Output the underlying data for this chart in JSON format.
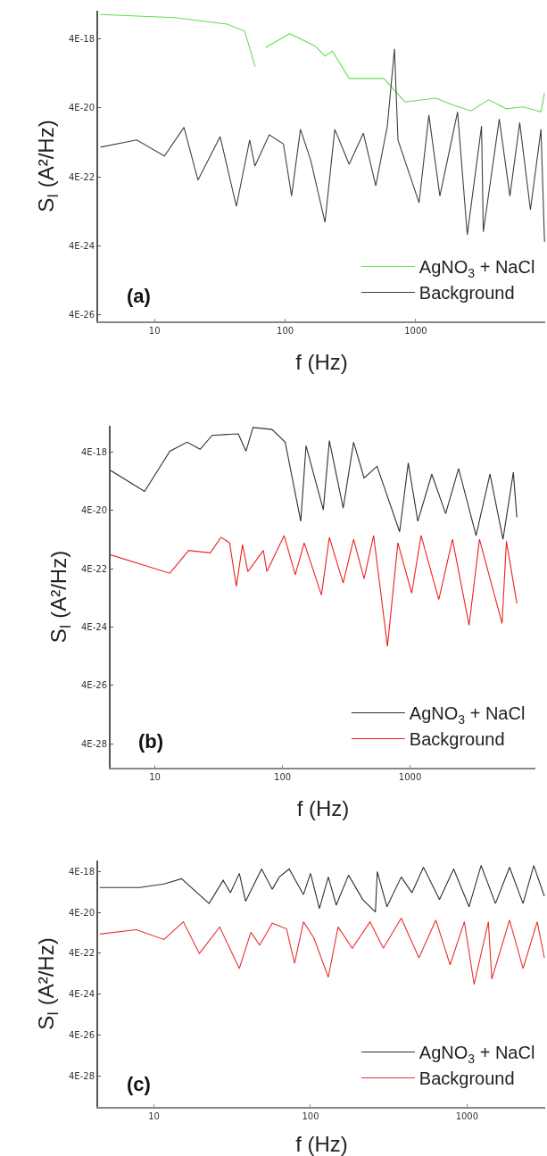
{
  "chart_data": [
    {
      "type": "line",
      "xlabel": "f (Hz)",
      "ylabel": "S$_{I}$ (A²/Hz)",
      "log": "xy",
      "legend": "bottom right",
      "marker": "none",
      "line_style": "solid",
      "annotations": [
        "(a)"
      ],
      "xlim": [
        3.7,
        9800
      ],
      "xticks": [
        10,
        100,
        1000
      ],
      "ylim": [
        2.5e-26,
        2.7e-17
      ],
      "yticks": [
        {
          "value": 4e-18,
          "label": "4E-18"
        },
        {
          "value": 4e-20,
          "label": "4E-20"
        },
        {
          "value": 4e-22,
          "label": "4E-22"
        },
        {
          "value": 4e-24,
          "label": "4E-24"
        },
        {
          "value": 4e-26,
          "label": "4E-26"
        }
      ],
      "series": [
        {
          "name": "AgNO$_{3}$ + NaCl",
          "color": "#66dd55",
          "x": [
            3.85,
            14.3,
            36,
            49,
            59,
            65,
            71,
            108,
            168,
            202,
            230,
            309,
            569,
            828,
            1430,
            1960,
            2640,
            3610,
            4940,
            6650,
            9100,
            9680
          ],
          "values": [
            2.1e-17,
            1.7e-17,
            1.1e-17,
            6.9e-18,
            6.3e-19,
            null,
            2.3e-18,
            5.8e-18,
            2.6e-18,
            1.3e-18,
            1.8e-18,
            2.9e-19,
            2.9e-19,
            6e-20,
            7.7e-20,
            4.8e-20,
            3.3e-20,
            6.9e-20,
            3.8e-20,
            4.3e-20,
            3.1e-20,
            1.1e-19
          ]
        },
        {
          "name": "Background",
          "color": "#404040",
          "x": [
            3.85,
            7.3,
            11.9,
            16.8,
            21.5,
            31.8,
            42.3,
            53.5,
            58.7,
            75.5,
            97,
            112,
            131,
            157,
            202,
            240,
            309,
            397,
            494,
            606,
            687,
            731,
            1060,
            1260,
            1530,
            2090,
            2480,
            3190,
            3290,
            4360,
            5260,
            6250,
            7550,
            9100,
            9680
          ],
          "values": [
            2.9e-21,
            4.7e-21,
            1.6e-21,
            1.1e-20,
            3.2e-22,
            5.9e-21,
            5.5e-23,
            4.7e-21,
            8.2e-22,
            6.6e-21,
            3.6e-21,
            1.1e-22,
            9.6e-21,
            1.2e-21,
            1.9e-23,
            9.6e-21,
            9.3e-22,
            7.4e-21,
            2.2e-22,
            1.2e-20,
            2.1e-18,
            4.7e-21,
            7e-23,
            2.5e-20,
            1.1e-22,
            3.1e-20,
            8.2e-24,
            1.2e-20,
            1e-23,
            1.9e-20,
            1.1e-22,
            1.5e-20,
            4.4e-23,
            9.6e-21,
            5.1e-24
          ]
        }
      ]
    },
    {
      "type": "line",
      "xlabel": "f (Hz)",
      "ylabel": "S$_{I}$ (A²/Hz)",
      "log": "xy",
      "legend": "bottom right",
      "marker": "none",
      "line_style": "solid",
      "annotations": [
        "(b)"
      ],
      "xlim": [
        4.5,
        9600
      ],
      "xticks": [
        10,
        100,
        1000
      ],
      "ylim": [
        6e-29,
        3.2e-17
      ],
      "yticks": [
        {
          "value": 4e-18,
          "label": "4E-18"
        },
        {
          "value": 4e-20,
          "label": "4E-20"
        },
        {
          "value": 4e-22,
          "label": "4E-22"
        },
        {
          "value": 4e-24,
          "label": "4E-24"
        },
        {
          "value": 4e-26,
          "label": "4E-26"
        },
        {
          "value": 4e-28,
          "label": "4E-28"
        }
      ],
      "series": [
        {
          "name": "AgNO$_{3}$ + NaCl",
          "color": "#303030",
          "x": [
            4.5,
            8.3,
            13.1,
            17.9,
            22.6,
            28.1,
            45,
            51.8,
            58.7,
            82.8,
            105,
            139,
            153,
            209,
            233,
            299,
            361,
            436,
            551,
            828,
            968,
            1150,
            1480,
            1900,
            2400,
            3290,
            4230,
            5350,
            6450,
            6870
          ],
          "values": [
            9.4e-19,
            1.8e-19,
            4.3e-18,
            8.8e-18,
            5e-18,
            1.5e-17,
            1.7e-17,
            4.3e-18,
            2.8e-17,
            2.4e-17,
            8.8e-18,
            1.7e-20,
            6.6e-18,
            4.2e-20,
            1e-17,
            4.8e-20,
            8.8e-18,
            5.2e-19,
            1.3e-18,
            7.4e-21,
            1.7e-18,
            1.7e-20,
            7e-19,
            3.1e-20,
            1.1e-18,
            5.5e-21,
            7e-19,
            4.1e-21,
            8.1e-19,
            2.3e-20
          ]
        },
        {
          "name": "Background",
          "color": "#ee2020",
          "x": [
            4.5,
            13.1,
            18.4,
            27.2,
            32.9,
            38.5,
            43.5,
            48.6,
            53.5,
            70.8,
            75.5,
            103,
            126,
            148,
            202,
            233,
            299,
            361,
            436,
            518,
            665,
            803,
            1030,
            1220,
            1680,
            2150,
            2900,
            3500,
            5260,
            5690,
            6870
          ],
          "values": [
            1.2e-21,
            2.8e-22,
            1.7e-21,
            1.4e-21,
            4.8e-21,
            3.1e-21,
            1e-22,
            2.7e-21,
            3.2e-22,
            1.7e-21,
            3.2e-22,
            5.5e-21,
            2.5e-22,
            3.1e-21,
            5e-23,
            4.8e-21,
            1.3e-22,
            4.1e-21,
            1.8e-22,
            5.5e-21,
            8.7e-25,
            3.1e-21,
            5.8e-23,
            5.5e-21,
            3.5e-23,
            4.1e-21,
            4.6e-24,
            4.1e-21,
            5.3e-24,
            3.5e-21,
            2.6e-23
          ]
        }
      ]
    },
    {
      "type": "line",
      "xlabel": "f (Hz)",
      "ylabel": "S$_{I}$ (A²/Hz)",
      "log": "xy",
      "legend": "bottom right",
      "marker": "none",
      "line_style": "solid",
      "annotations": [
        "(c)"
      ],
      "xlim": [
        4.4,
        3160
      ],
      "xticks": [
        10,
        100,
        1000
      ],
      "ylim": [
        1.2e-29,
        1.4e-17
      ],
      "yticks": [
        {
          "value": 4e-18,
          "label": "4E-18"
        },
        {
          "value": 4e-20,
          "label": "4E-20"
        },
        {
          "value": 4e-22,
          "label": "4E-22"
        },
        {
          "value": 4e-24,
          "label": "4E-24"
        },
        {
          "value": 4e-26,
          "label": "4E-26"
        },
        {
          "value": 4e-28,
          "label": "4E-28"
        }
      ],
      "series": [
        {
          "name": "AgNO$_{3}$ + NaCl",
          "color": "#303030",
          "x": [
            4.5,
            8.1,
            11.6,
            15.0,
            22.5,
            27.7,
            30.8,
            35.1,
            38.5,
            48.7,
            57.0,
            63.3,
            73.1,
            90.2,
            100,
            114,
            130,
            146,
            175,
            216,
            260,
            267,
            308,
            380,
            445,
            527,
            667,
            822,
            1030,
            1230,
            1520,
            1870,
            2280,
            2670,
            3120
          ],
          "values": [
            6.7e-19,
            6.7e-19,
            1e-18,
            1.8e-18,
            1.1e-19,
            1.5e-18,
            3.7e-19,
            3.3e-18,
            1.4e-19,
            5.4e-18,
            5.5e-19,
            2.2e-18,
            5.4e-18,
            3e-19,
            3.3e-18,
            6.2e-20,
            2.2e-18,
            9.1e-20,
            2.7e-18,
            1.7e-19,
            4.2e-20,
            4e-18,
            7.6e-20,
            2.2e-18,
            3.7e-19,
            6.6e-18,
            1.7e-19,
            5.4e-18,
            7.6e-20,
            8e-18,
            1.1e-19,
            6.6e-18,
            1.1e-19,
            8e-18,
            2.5e-19
          ]
        },
        {
          "name": "Background",
          "color": "#e83030",
          "x": [
            4.5,
            7.7,
            11.6,
            15.4,
            19.5,
            26.3,
            35.1,
            41.6,
            47.4,
            57.0,
            70.3,
            79.1,
            90.2,
            105,
            130,
            150,
            185,
            240,
            292,
            380,
            493,
            632,
            780,
            962,
            1110,
            1370,
            1440,
            1870,
            2280,
            2810,
            3120
          ],
          "values": [
            3.5e-21,
            5.7e-21,
            1.9e-21,
            1.4e-20,
            3.9e-22,
            7.8e-21,
            7.2e-23,
            4.3e-21,
            1e-21,
            1.2e-20,
            6.3e-21,
            1.3e-22,
            1.4e-20,
            2.3e-21,
            2.7e-23,
            7.8e-21,
            7.1e-22,
            1.4e-20,
            7.1e-22,
            2.1e-20,
            2.4e-22,
            1.7e-20,
            1.1e-22,
            1.4e-20,
            1.2e-23,
            1.4e-20,
            2.2e-23,
            1.7e-20,
            7.2e-23,
            1.4e-20,
            2.4e-22
          ]
        }
      ]
    }
  ]
}
